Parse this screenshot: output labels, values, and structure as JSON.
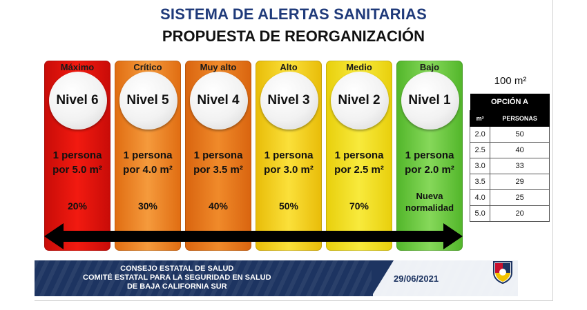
{
  "title": "SISTEMA DE ALERTAS SANITARIAS",
  "subtitle": "PROPUESTA DE REORGANIZACIÓN",
  "levels": [
    {
      "risk": "Máximo",
      "level": "Nivel 6",
      "line1": "1 persona",
      "line2": "por 5.0 m²",
      "value": "20%",
      "color": "#e8150e"
    },
    {
      "risk": "Crítico",
      "level": "Nivel 5",
      "line1": "1 persona",
      "line2": "por 4.0 m²",
      "value": "30%",
      "color": "#f0862a"
    },
    {
      "risk": "Muy alto",
      "level": "Nivel 4",
      "line1": "1 persona",
      "line2": "por 3.5 m²",
      "value": "40%",
      "color": "#ea7f22"
    },
    {
      "risk": "Alto",
      "level": "Nivel 3",
      "line1": "1 persona",
      "line2": "por 3.0 m²",
      "value": "50%",
      "color": "#f4d315"
    },
    {
      "risk": "Medio",
      "level": "Nivel 2",
      "line1": "1 persona",
      "line2": "por 2.5 m²",
      "value": "70%",
      "color": "#f2e21a"
    },
    {
      "risk": "Bajo",
      "level": "Nivel 1",
      "line1": "1 persona",
      "line2": "por 2.0 m²",
      "value": "Nueva normalidad",
      "value_l1": "Nueva",
      "value_l2": "normalidad",
      "color": "#6fcb3e"
    }
  ],
  "area": "100 m²",
  "option_table": {
    "title": "OPCIÓN A",
    "col1": "m²",
    "col2": "PERSONAS",
    "rows": [
      [
        "2.0",
        "50"
      ],
      [
        "2.5",
        "40"
      ],
      [
        "3.0",
        "33"
      ],
      [
        "3.5",
        "29"
      ],
      [
        "4.0",
        "25"
      ],
      [
        "5.0",
        "20"
      ]
    ]
  },
  "footer": {
    "line1": "CONSEJO ESTATAL DE SALUD",
    "line2": "COMITÉ ESTATAL PARA LA SEGURIDAD EN SALUD",
    "line3": "DE BAJA CALIFORNIA SUR",
    "date": "29/06/2021"
  },
  "colors": {
    "title": "#1f3a7a",
    "footer": "#1d3461"
  }
}
